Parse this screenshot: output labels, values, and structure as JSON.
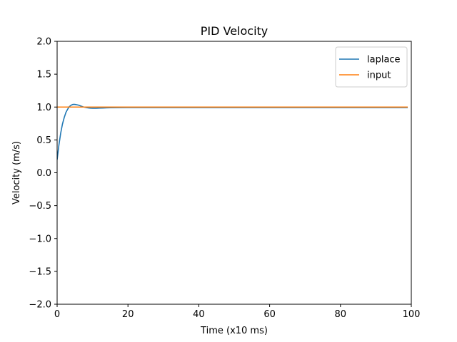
{
  "chart_data": {
    "type": "line",
    "title": "PID Velocity",
    "xlabel": "Time (x10 ms)",
    "ylabel": "Velocity (m/s)",
    "xlim": [
      0,
      100
    ],
    "ylim": [
      -2.0,
      2.0
    ],
    "xticks": [
      0,
      20,
      40,
      60,
      80,
      100
    ],
    "xtick_labels": [
      "0",
      "20",
      "40",
      "60",
      "80",
      "100"
    ],
    "yticks": [
      -2.0,
      -1.5,
      -1.0,
      -0.5,
      0.0,
      0.5,
      1.0,
      1.5,
      2.0
    ],
    "ytick_labels": [
      "−2.0",
      "−1.5",
      "−1.0",
      "−0.5",
      "0.0",
      "0.5",
      "1.0",
      "1.5",
      "2.0"
    ],
    "grid": false,
    "legend_position": "top-right",
    "series": [
      {
        "name": "laplace",
        "color": "#1f77b4",
        "x": [
          0,
          0.5,
          1,
          1.5,
          2,
          2.5,
          3,
          3.5,
          4,
          4.5,
          5,
          5.5,
          6,
          6.5,
          7,
          7.5,
          8,
          8.5,
          9,
          9.5,
          10,
          11,
          12,
          13,
          14,
          15,
          17,
          20,
          25,
          30,
          40,
          50,
          60,
          70,
          80,
          90,
          99
        ],
        "y": [
          0.2,
          0.42,
          0.6,
          0.74,
          0.84,
          0.92,
          0.97,
          1.01,
          1.03,
          1.04,
          1.04,
          1.035,
          1.03,
          1.02,
          1.01,
          1.0,
          0.995,
          0.99,
          0.985,
          0.983,
          0.982,
          0.982,
          0.984,
          0.986,
          0.988,
          0.99,
          0.991,
          0.992,
          0.993,
          0.993,
          0.993,
          0.993,
          0.993,
          0.993,
          0.993,
          0.993,
          0.993
        ]
      },
      {
        "name": "input",
        "color": "#ff7f0e",
        "x": [
          0,
          99
        ],
        "y": [
          1.0,
          1.0
        ]
      }
    ]
  }
}
